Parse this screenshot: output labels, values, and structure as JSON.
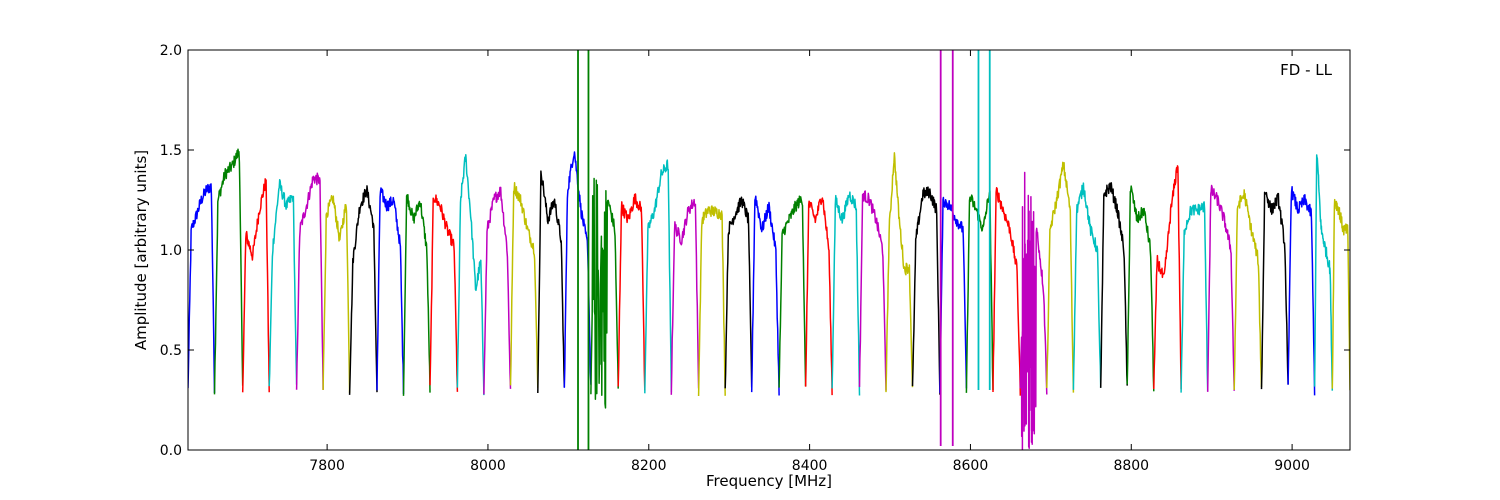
{
  "chart_data": {
    "type": "line",
    "xlabel": "Frequency [MHz]",
    "ylabel": "Amplitude [arbitrary units]",
    "annotation": "FD - LL",
    "annotation_position": "top-right",
    "xlim": [
      7627,
      9072
    ],
    "ylim": [
      0.0,
      2.0
    ],
    "x_ticks": [
      7800,
      8000,
      8200,
      8400,
      8600,
      8800,
      9000
    ],
    "y_ticks": [
      0.0,
      0.5,
      1.0,
      1.5,
      2.0
    ],
    "x_tick_labels": [
      "7800",
      "8000",
      "8200",
      "8400",
      "8600",
      "8800",
      "9000"
    ],
    "y_tick_labels": [
      "0.0",
      "0.5",
      "1.0",
      "1.5",
      "2.0"
    ],
    "grid": false,
    "legend": false,
    "color_cycle": [
      "#0000ff",
      "#008000",
      "#ff0000",
      "#00bfbf",
      "#bf00bf",
      "#bfbf00",
      "#000000"
    ],
    "series": [
      {
        "start": 7627,
        "end": 7660,
        "color": "#0000ff",
        "peaks": [
          1.1,
          1.17,
          1.25,
          1.3,
          1.32
        ],
        "rfi": "none"
      },
      {
        "start": 7660,
        "end": 7695,
        "color": "#008000",
        "peaks": [
          1.25,
          1.38,
          1.42,
          1.5
        ],
        "rfi": "none"
      },
      {
        "start": 7695,
        "end": 7728,
        "color": "#ff0000",
        "peaks": [
          1.08,
          0.97,
          1.2,
          1.35
        ],
        "rfi": "none"
      },
      {
        "start": 7728,
        "end": 7762,
        "color": "#00bfbf",
        "peaks": [
          1.0,
          1.33,
          1.22,
          1.27
        ],
        "rfi": "none"
      },
      {
        "start": 7762,
        "end": 7795,
        "color": "#bf00bf",
        "peaks": [
          1.1,
          1.22,
          1.36,
          1.35
        ],
        "rfi": "none"
      },
      {
        "start": 7795,
        "end": 7828,
        "color": "#bfbf00",
        "peaks": [
          1.18,
          1.26,
          1.05,
          1.24
        ],
        "rfi": "none"
      },
      {
        "start": 7828,
        "end": 7862,
        "color": "#000000",
        "peaks": [
          0.95,
          1.22,
          1.3,
          1.12
        ],
        "rfi": "none"
      },
      {
        "start": 7862,
        "end": 7895,
        "color": "#0000ff",
        "peaks": [
          1.3,
          1.22,
          1.25,
          1.02
        ],
        "rfi": "none"
      },
      {
        "start": 7895,
        "end": 7928,
        "color": "#008000",
        "peaks": [
          1.28,
          1.15,
          1.25,
          1.0
        ],
        "rfi": "none"
      },
      {
        "start": 7928,
        "end": 7962,
        "color": "#ff0000",
        "peaks": [
          1.27,
          1.22,
          1.1,
          1.02
        ],
        "rfi": "none"
      },
      {
        "start": 7962,
        "end": 7995,
        "color": "#00bfbf",
        "peaks": [
          1.25,
          1.47,
          1.18,
          0.8,
          0.95
        ],
        "rfi": "none"
      },
      {
        "start": 7995,
        "end": 8028,
        "color": "#bf00bf",
        "peaks": [
          1.1,
          1.25,
          1.3,
          1.0
        ],
        "rfi": "none"
      },
      {
        "start": 8028,
        "end": 8062,
        "color": "#bfbf00",
        "peaks": [
          1.32,
          1.25,
          1.1,
          1.0
        ],
        "rfi": "none"
      },
      {
        "start": 8062,
        "end": 8095,
        "color": "#000000",
        "peaks": [
          1.4,
          1.15,
          1.25,
          1.05
        ],
        "rfi": "none"
      },
      {
        "start": 8095,
        "end": 8128,
        "color": "#0000ff",
        "peaks": [
          1.3,
          1.5,
          1.2,
          1.02
        ],
        "rfi": "none"
      },
      {
        "start": 8128,
        "end": 8162,
        "color": "#008000",
        "peaks": [
          1.2,
          0.9,
          1.25,
          1.1
        ],
        "rfi": "heavy-green"
      },
      {
        "start": 8162,
        "end": 8195,
        "color": "#ff0000",
        "peaks": [
          1.22,
          1.15,
          1.26,
          1.2
        ],
        "rfi": "none"
      },
      {
        "start": 8195,
        "end": 8228,
        "color": "#00bfbf",
        "peaks": [
          1.1,
          1.2,
          1.38,
          1.43
        ],
        "rfi": "none"
      },
      {
        "start": 8228,
        "end": 8262,
        "color": "#bf00bf",
        "peaks": [
          1.12,
          1.05,
          1.2,
          1.25
        ],
        "rfi": "none"
      },
      {
        "start": 8262,
        "end": 8295,
        "color": "#bfbf00",
        "peaks": [
          1.15,
          1.2,
          1.19,
          1.18
        ],
        "rfi": "none"
      },
      {
        "start": 8295,
        "end": 8328,
        "color": "#000000",
        "peaks": [
          1.1,
          1.18,
          1.25,
          1.15
        ],
        "rfi": "none"
      },
      {
        "start": 8328,
        "end": 8362,
        "color": "#0000ff",
        "peaks": [
          1.28,
          1.1,
          1.22,
          1.0
        ],
        "rfi": "none"
      },
      {
        "start": 8362,
        "end": 8395,
        "color": "#008000",
        "peaks": [
          1.08,
          1.15,
          1.22,
          1.26
        ],
        "rfi": "none"
      },
      {
        "start": 8395,
        "end": 8428,
        "color": "#ff0000",
        "peaks": [
          1.24,
          1.15,
          1.28,
          1.0
        ],
        "rfi": "none"
      },
      {
        "start": 8428,
        "end": 8462,
        "color": "#00bfbf",
        "peaks": [
          1.25,
          1.15,
          1.28,
          1.22
        ],
        "rfi": "none"
      },
      {
        "start": 8462,
        "end": 8495,
        "color": "#bf00bf",
        "peaks": [
          1.28,
          1.25,
          1.15,
          1.0
        ],
        "rfi": "none"
      },
      {
        "start": 8495,
        "end": 8528,
        "color": "#bfbf00",
        "peaks": [
          1.1,
          1.48,
          1.15,
          0.9,
          0.92
        ],
        "rfi": "none"
      },
      {
        "start": 8528,
        "end": 8562,
        "color": "#000000",
        "peaks": [
          1.05,
          1.28,
          1.29,
          1.2
        ],
        "rfi": "none"
      },
      {
        "start": 8562,
        "end": 8595,
        "color": "#0000ff",
        "peaks": [
          1.25,
          1.22,
          1.15,
          1.1
        ],
        "rfi": "none"
      },
      {
        "start": 8595,
        "end": 8628,
        "color": "#008000",
        "peaks": [
          1.27,
          1.2,
          1.1,
          1.3
        ],
        "rfi": "none"
      },
      {
        "start": 8628,
        "end": 8662,
        "color": "#ff0000",
        "peaks": [
          1.3,
          1.2,
          1.1,
          0.9
        ],
        "rfi": "none"
      },
      {
        "start": 8662,
        "end": 8695,
        "color": "#bf00bf",
        "peaks": [
          1.0,
          0.9,
          1.1,
          0.8
        ],
        "rfi": "heavy-magenta"
      },
      {
        "start": 8695,
        "end": 8728,
        "color": "#bfbf00",
        "peaks": [
          1.1,
          1.25,
          1.43,
          1.2
        ],
        "rfi": "none"
      },
      {
        "start": 8728,
        "end": 8762,
        "color": "#00bfbf",
        "peaks": [
          1.2,
          1.32,
          1.1,
          1.0
        ],
        "rfi": "spikes-cyan"
      },
      {
        "start": 8762,
        "end": 8795,
        "color": "#000000",
        "peaks": [
          1.28,
          1.32,
          1.2,
          1.0
        ],
        "rfi": "none"
      },
      {
        "start": 8795,
        "end": 8828,
        "color": "#008000",
        "peaks": [
          1.32,
          1.15,
          1.2,
          1.0
        ],
        "rfi": "none"
      },
      {
        "start": 8828,
        "end": 8862,
        "color": "#ff0000",
        "peaks": [
          0.95,
          0.85,
          1.2,
          1.44
        ],
        "rfi": "none"
      },
      {
        "start": 8862,
        "end": 8895,
        "color": "#00bfbf",
        "peaks": [
          1.1,
          1.2,
          1.2,
          1.22
        ],
        "rfi": "none"
      },
      {
        "start": 8895,
        "end": 8928,
        "color": "#bf00bf",
        "peaks": [
          1.3,
          1.25,
          1.15,
          1.0
        ],
        "rfi": "none"
      },
      {
        "start": 8928,
        "end": 8962,
        "color": "#bfbf00",
        "peaks": [
          1.22,
          1.28,
          1.1,
          0.95
        ],
        "rfi": "none"
      },
      {
        "start": 8962,
        "end": 8995,
        "color": "#000000",
        "peaks": [
          1.3,
          1.2,
          1.26,
          1.02
        ],
        "rfi": "none"
      },
      {
        "start": 8995,
        "end": 9028,
        "color": "#0000ff",
        "peaks": [
          1.3,
          1.2,
          1.25,
          1.18
        ],
        "rfi": "none"
      },
      {
        "start": 9028,
        "end": 9050,
        "color": "#00bfbf",
        "peaks": [
          1.5,
          1.1,
          1.0,
          0.9
        ],
        "rfi": "none"
      },
      {
        "start": 9050,
        "end": 9072,
        "color": "#bfbf00",
        "peaks": [
          1.25,
          1.2,
          1.1,
          1.1
        ],
        "rfi": "none"
      }
    ]
  }
}
